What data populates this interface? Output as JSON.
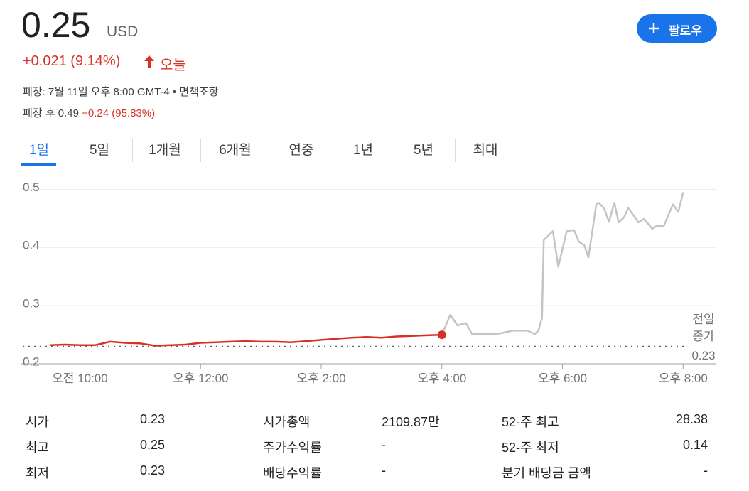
{
  "header": {
    "price": "0.25",
    "currency": "USD",
    "change": "+0.021 (9.14%)",
    "change_period": "오늘",
    "follow": "팔로우",
    "closed": "폐장: 7월 11일 오후 8:00 GMT-4",
    "separator": "•",
    "disclaimer": "면책조항",
    "after_hours": "폐장 후 0.49",
    "after_hours_change": "+0.24 (95.83%)"
  },
  "tabs": [
    "1일",
    "5일",
    "1개월",
    "6개월",
    "연중",
    "1년",
    "5년",
    "최대"
  ],
  "chart_data": {
    "type": "line",
    "xlim": [
      9.5,
      20.55
    ],
    "xticks": [
      {
        "value": 10,
        "label": "오전 10:00"
      },
      {
        "value": 12,
        "label": "오후 12:00"
      },
      {
        "value": 14,
        "label": "오후 2:00"
      },
      {
        "value": 16,
        "label": "오후 4:00"
      },
      {
        "value": 18,
        "label": "오후 6:00"
      },
      {
        "value": 20,
        "label": "오후 8:00"
      }
    ],
    "ylim": [
      0.2,
      0.52
    ],
    "yticks": [
      0.2,
      0.3,
      0.4,
      0.5
    ],
    "grid": true,
    "prev_close": 0.23,
    "prev_close_label": [
      "전일",
      "종가"
    ],
    "series": [
      {
        "color": "#d93025",
        "x": [
          9.5,
          9.75,
          10,
          10.25,
          10.5,
          10.75,
          11,
          11.25,
          11.5,
          11.75,
          12,
          12.25,
          12.5,
          12.75,
          13,
          13.25,
          13.5,
          13.75,
          14,
          14.25,
          14.5,
          14.75,
          15,
          15.25,
          15.5,
          15.75,
          16
        ],
        "values": [
          0.232,
          0.233,
          0.232,
          0.232,
          0.238,
          0.236,
          0.235,
          0.231,
          0.232,
          0.233,
          0.236,
          0.237,
          0.238,
          0.239,
          0.238,
          0.238,
          0.237,
          0.239,
          0.241,
          0.243,
          0.245,
          0.246,
          0.245,
          0.247,
          0.248,
          0.249,
          0.25
        ]
      },
      {
        "color": "#c4c4c4",
        "x": [
          16,
          16.14,
          16.26,
          16.4,
          16.5,
          16.83,
          16.95,
          17.18,
          17.42,
          17.54,
          17.6,
          17.66,
          17.69,
          17.84,
          17.93,
          18.07,
          18.19,
          18.27,
          18.36,
          18.43,
          18.56,
          18.6,
          18.69,
          18.77,
          18.86,
          18.93,
          19.02,
          19.09,
          19.26,
          19.35,
          19.49,
          19.56,
          19.68,
          19.83,
          19.92,
          20
        ],
        "values": [
          0.25,
          0.284,
          0.266,
          0.27,
          0.251,
          0.251,
          0.252,
          0.257,
          0.257,
          0.251,
          0.257,
          0.279,
          0.413,
          0.428,
          0.367,
          0.428,
          0.43,
          0.41,
          0.404,
          0.383,
          0.474,
          0.477,
          0.467,
          0.444,
          0.477,
          0.443,
          0.452,
          0.468,
          0.443,
          0.449,
          0.432,
          0.437,
          0.437,
          0.474,
          0.461,
          0.495
        ]
      }
    ]
  },
  "stats": {
    "rows": [
      [
        "시가",
        "0.23",
        "시가총액",
        "2109.87만",
        "52-주 최고",
        "28.38"
      ],
      [
        "최고",
        "0.25",
        "주가수익률",
        "-",
        "52-주 최저",
        "0.14"
      ],
      [
        "최저",
        "0.23",
        "배당수익률",
        "-",
        "분기 배당금 금액",
        "-"
      ]
    ]
  }
}
